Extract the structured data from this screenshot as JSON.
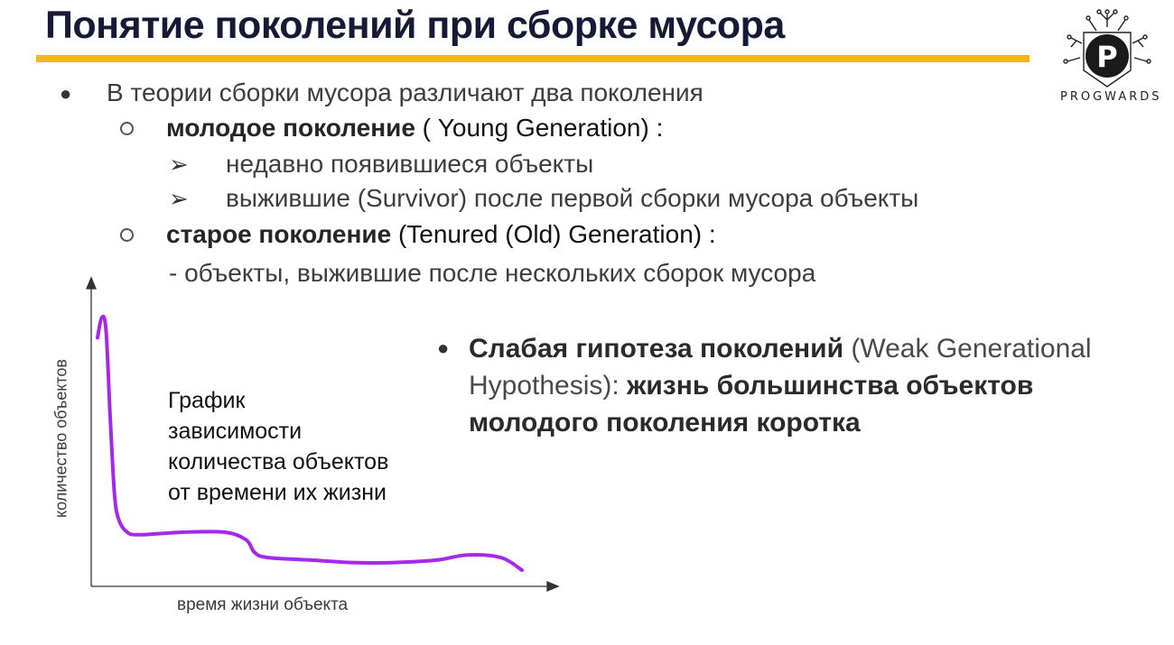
{
  "slide": {
    "title": "Понятие поколений при сборке мусора",
    "bullets": {
      "intro": "В теории сборки мусора различают два поколения",
      "young_term": "молодое поколение",
      "young_name": " ( Young  Generation) :",
      "young_items": [
        "недавно появившиеся объекты",
        "выжившие (Survivor) после первой сборки мусора объекты"
      ],
      "old_term": "старое поколение",
      "old_name": " (Tenured (Old) Generation) :",
      "old_item": "- объекты, выжившие после нескольких сборок мусора"
    },
    "hypothesis": {
      "term": "Слабая гипотеза поколений",
      "english": " (Weak Generational Hypothesis): ",
      "conclusion": "жизнь большинства объектов молодого поколения коротка"
    },
    "graph_caption": {
      "line1": "График",
      "line2": "зависимости",
      "line3": "количества объектов",
      "line4": "от времени их жизни"
    }
  },
  "logo": {
    "text": "PROGWARDS",
    "letter": "P"
  },
  "colors": {
    "title": "#161a36",
    "accent_bar": "#f4b71b",
    "curve": "#a528ec"
  },
  "chart_data": {
    "type": "line",
    "xlabel": "время жизни объекта",
    "ylabel": "количество объектов",
    "series": [
      {
        "x": [
          0,
          1,
          2,
          3,
          4,
          5,
          7,
          10,
          20,
          30,
          35,
          37,
          40,
          50,
          60,
          70,
          80,
          87,
          95,
          100
        ],
        "values": [
          92,
          100,
          95,
          60,
          30,
          20,
          15,
          14,
          15,
          15,
          12,
          7,
          5,
          4,
          3,
          3,
          4,
          6,
          5,
          0
        ]
      }
    ]
  }
}
